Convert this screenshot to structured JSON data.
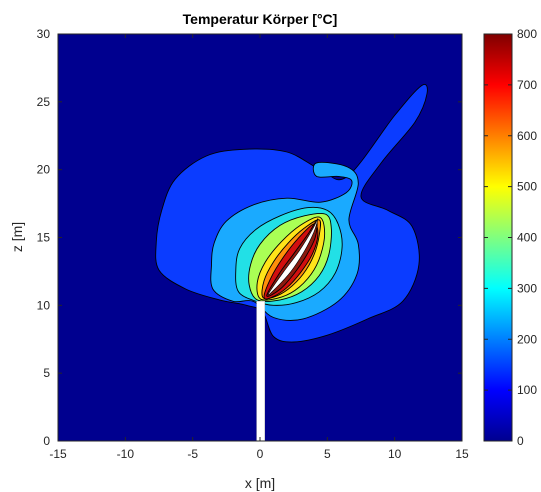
{
  "chart_data": {
    "type": "heatmap",
    "title": "Temperatur Körper [°C]",
    "xlabel": "x [m]",
    "ylabel": "z [m]",
    "xlim": [
      -15,
      15
    ],
    "ylim": [
      0,
      30
    ],
    "x_ticks": [
      -15,
      -10,
      -5,
      0,
      5,
      10,
      15
    ],
    "y_ticks": [
      0,
      5,
      10,
      15,
      20,
      25,
      30
    ],
    "colorbar": {
      "min": 0,
      "max": 800,
      "ticks": [
        0,
        100,
        200,
        300,
        400,
        500,
        600,
        700,
        800
      ],
      "colormap": "jet"
    },
    "background_value": 20,
    "contour_regions": [
      {
        "name": "level-100",
        "value": 100,
        "color": "#0b3cff",
        "points": [
          [
            -1,
            10
          ],
          [
            -3,
            10.4
          ],
          [
            -5.5,
            11.2
          ],
          [
            -7.5,
            12.6
          ],
          [
            -7.7,
            14.7
          ],
          [
            -7.3,
            17
          ],
          [
            -6.3,
            19.3
          ],
          [
            -4,
            21
          ],
          [
            -1.2,
            21.5
          ],
          [
            2,
            21.3
          ],
          [
            4.5,
            20
          ],
          [
            6.5,
            19.5
          ],
          [
            10,
            24
          ],
          [
            12,
            26.2
          ],
          [
            12.4,
            25.6
          ],
          [
            11.5,
            23.5
          ],
          [
            9,
            20.5
          ],
          [
            7.5,
            18
          ],
          [
            9.5,
            17
          ],
          [
            11.3,
            15.8
          ],
          [
            11.8,
            13
          ],
          [
            10.6,
            10.3
          ],
          [
            8,
            9
          ],
          [
            5,
            7.8
          ],
          [
            2.5,
            7.3
          ],
          [
            1,
            7.7
          ],
          [
            0.2,
            9.5
          ]
        ]
      },
      {
        "name": "level-200",
        "value": 200,
        "color": "#1aaaff",
        "points": [
          [
            -0.5,
            10.3
          ],
          [
            -2,
            10.3
          ],
          [
            -3.5,
            11.2
          ],
          [
            -3.6,
            13
          ],
          [
            -3.4,
            14.6
          ],
          [
            -2.5,
            16.2
          ],
          [
            -0.5,
            17.4
          ],
          [
            2,
            17.9
          ],
          [
            4.5,
            17.6
          ],
          [
            6.4,
            18.3
          ],
          [
            6.8,
            19.2
          ],
          [
            5.8,
            19.5
          ],
          [
            4.2,
            19.5
          ],
          [
            4.2,
            20.5
          ],
          [
            6.5,
            20.2
          ],
          [
            7.3,
            19
          ],
          [
            6.6,
            16.3
          ],
          [
            7.3,
            14.5
          ],
          [
            7.2,
            12.3
          ],
          [
            5.8,
            10.3
          ],
          [
            3.2,
            9
          ],
          [
            1,
            9.1
          ]
        ]
      },
      {
        "name": "level-300",
        "value": 300,
        "color": "#22e0e6",
        "points": [
          [
            -0.3,
            10.3
          ],
          [
            -1.6,
            11
          ],
          [
            -1.8,
            12.6
          ],
          [
            -1.5,
            14.2
          ],
          [
            -0.3,
            15.6
          ],
          [
            1.5,
            16.6
          ],
          [
            3.5,
            17.2
          ],
          [
            5,
            17
          ],
          [
            5.8,
            16
          ],
          [
            6.1,
            14.3
          ],
          [
            5.6,
            12.4
          ],
          [
            4.4,
            11
          ],
          [
            2.7,
            10.2
          ],
          [
            1,
            10
          ]
        ]
      },
      {
        "name": "level-400",
        "value": 400,
        "color": "#aaff55",
        "points": [
          [
            -0.2,
            10.4
          ],
          [
            -0.8,
            11.5
          ],
          [
            -0.7,
            13
          ],
          [
            0,
            14.5
          ],
          [
            1.5,
            15.9
          ],
          [
            3.3,
            16.6
          ],
          [
            4.9,
            16.7
          ],
          [
            5.3,
            15.6
          ],
          [
            5.1,
            13.7
          ],
          [
            4.4,
            12.2
          ],
          [
            3.1,
            11
          ],
          [
            1.5,
            10.4
          ]
        ]
      },
      {
        "name": "level-500",
        "value": 500,
        "color": "#ffe419",
        "points": [
          [
            0,
            10.5
          ],
          [
            -0.2,
            11.7
          ],
          [
            0.4,
            13.2
          ],
          [
            1.6,
            14.7
          ],
          [
            3,
            15.9
          ],
          [
            4.4,
            16.5
          ],
          [
            4.8,
            15.4
          ],
          [
            4.5,
            13.7
          ],
          [
            3.8,
            12.3
          ],
          [
            2.6,
            11.1
          ],
          [
            1.2,
            10.5
          ]
        ]
      },
      {
        "name": "level-600",
        "value": 600,
        "color": "#ff8f0a",
        "points": [
          [
            0.2,
            10.6
          ],
          [
            0.3,
            11.8
          ],
          [
            1,
            13.2
          ],
          [
            2.1,
            14.6
          ],
          [
            3.3,
            15.7
          ],
          [
            4.4,
            16.3
          ],
          [
            4.4,
            15.2
          ],
          [
            4,
            13.7
          ],
          [
            3.2,
            12.3
          ],
          [
            2.1,
            11.2
          ],
          [
            1,
            10.6
          ]
        ]
      },
      {
        "name": "level-700",
        "value": 700,
        "color": "#d20f0f",
        "points": [
          [
            0.3,
            10.6
          ],
          [
            0.8,
            12
          ],
          [
            1.7,
            13.5
          ],
          [
            2.8,
            14.9
          ],
          [
            4,
            16
          ],
          [
            4.3,
            15.2
          ],
          [
            3.9,
            13.8
          ],
          [
            3,
            12.4
          ],
          [
            2,
            11.3
          ],
          [
            0.9,
            10.6
          ]
        ]
      },
      {
        "name": "level-800",
        "value": 800,
        "color": "#8b1a10",
        "points": [
          [
            0.5,
            10.7
          ],
          [
            1.4,
            12.3
          ],
          [
            2.5,
            13.8
          ],
          [
            3.6,
            15.3
          ],
          [
            4.2,
            16.2
          ],
          [
            4.1,
            15
          ],
          [
            3.4,
            13.6
          ],
          [
            2.5,
            12.3
          ],
          [
            1.5,
            11.2
          ]
        ]
      },
      {
        "name": "body-void",
        "value": 1000,
        "color": "#ffffff",
        "points": [
          [
            0.6,
            10.8
          ],
          [
            1.7,
            12.4
          ],
          [
            2.9,
            14
          ],
          [
            3.9,
            15.6
          ],
          [
            4.3,
            16.4
          ],
          [
            4,
            15.4
          ],
          [
            3.3,
            14
          ],
          [
            2.3,
            12.5
          ],
          [
            1.2,
            11.3
          ]
        ]
      }
    ],
    "mast": {
      "x_range": [
        -0.25,
        0.35
      ],
      "z_range": [
        0,
        10.3
      ],
      "color": "#ffffff"
    }
  }
}
